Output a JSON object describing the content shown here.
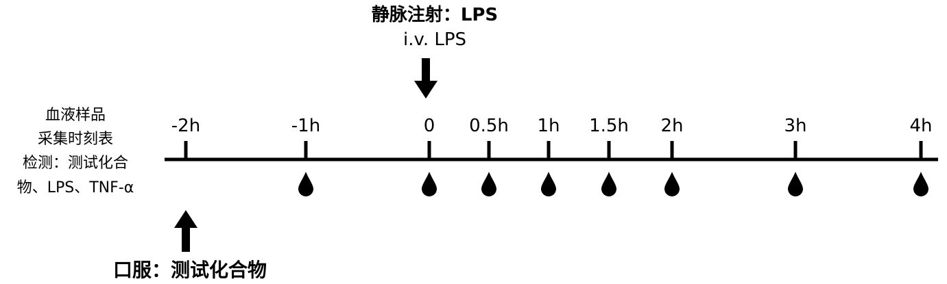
{
  "injection": {
    "title_cn": "静脉注射：LPS",
    "title_en": "i.v. LPS"
  },
  "oral": {
    "label": "口服：测试化合物"
  },
  "sidebar": {
    "lines": [
      "血液样品",
      "采集时刻表",
      "检测：测试化合",
      "物、LPS、TNF-α"
    ]
  },
  "timeline": {
    "ticks": [
      {
        "label": "-2h",
        "hours": -2,
        "sampled": false
      },
      {
        "label": "-1h",
        "hours": -1,
        "sampled": true
      },
      {
        "label": "0",
        "hours": 0,
        "sampled": true
      },
      {
        "label": "0.5h",
        "hours": 0.5,
        "sampled": true
      },
      {
        "label": "1h",
        "hours": 1,
        "sampled": true
      },
      {
        "label": "1.5h",
        "hours": 1.5,
        "sampled": true
      },
      {
        "label": "2h",
        "hours": 2,
        "sampled": true
      },
      {
        "label": "3h",
        "hours": 3,
        "sampled": true
      },
      {
        "label": "4h",
        "hours": 4,
        "sampled": true
      }
    ],
    "injection_at_hours": 0,
    "oral_at_hours": -2
  }
}
